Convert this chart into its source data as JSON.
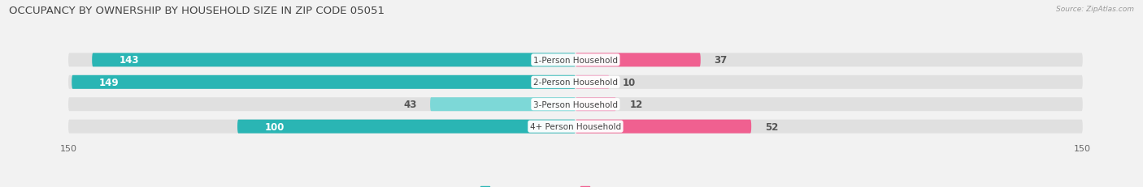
{
  "title": "OCCUPANCY BY OWNERSHIP BY HOUSEHOLD SIZE IN ZIP CODE 05051",
  "source": "Source: ZipAtlas.com",
  "categories": [
    "1-Person Household",
    "2-Person Household",
    "3-Person Household",
    "4+ Person Household"
  ],
  "owner_values": [
    143,
    149,
    43,
    100
  ],
  "renter_values": [
    37,
    10,
    12,
    52
  ],
  "owner_color_dark": "#2ab5b4",
  "owner_color_light": "#7dd8d7",
  "renter_color_dark": "#f06090",
  "renter_color_light": "#f0a0c0",
  "axis_max": 150,
  "bg_color": "#f2f2f2",
  "bar_bg_color": "#e0e0e0",
  "title_fontsize": 9.5,
  "bar_label_fontsize": 8.5,
  "category_fontsize": 7.5,
  "legend_fontsize": 8,
  "axis_label_fontsize": 8,
  "bar_height": 0.62,
  "bar_gap": 0.08,
  "owner_label_threshold": 80,
  "renter_dark_rows": [
    0,
    3
  ],
  "owner_dark_rows": [
    0,
    1,
    3
  ]
}
